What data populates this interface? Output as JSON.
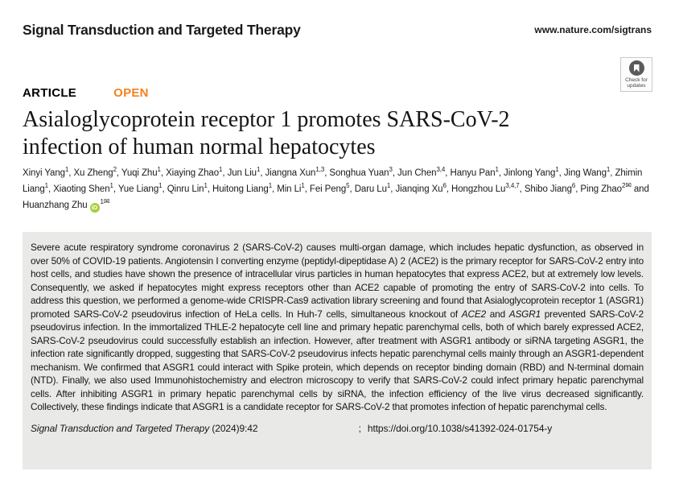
{
  "header": {
    "journal": "Signal Transduction and Targeted Therapy",
    "site_url": "www.nature.com/sigtrans"
  },
  "badge": {
    "label_line1": "Check for",
    "label_line2": "updates"
  },
  "article": {
    "type_label": "ARTICLE",
    "open_label": "OPEN",
    "title_line1": "Asialoglycoprotein receptor 1 promotes SARS-CoV-2",
    "title_line2": "infection of human normal hepatocytes"
  },
  "authors": {
    "conjunction": "and",
    "email_icon": "✉",
    "orcid_label": "iD",
    "list": [
      {
        "name": "Xinyi Yang",
        "sup": "1"
      },
      {
        "name": "Xu Zheng",
        "sup": "2"
      },
      {
        "name": "Yuqi Zhu",
        "sup": "1"
      },
      {
        "name": "Xiaying Zhao",
        "sup": "1"
      },
      {
        "name": "Jun Liu",
        "sup": "1"
      },
      {
        "name": "Jiangna Xun",
        "sup": "1,3"
      },
      {
        "name": "Songhua Yuan",
        "sup": "3"
      },
      {
        "name": "Jun Chen",
        "sup": "3,4"
      },
      {
        "name": "Hanyu Pan",
        "sup": "1"
      },
      {
        "name": "Jinlong Yang",
        "sup": "1"
      },
      {
        "name": "Jing Wang",
        "sup": "1"
      },
      {
        "name": "Zhimin Liang",
        "sup": "1"
      },
      {
        "name": "Xiaoting Shen",
        "sup": "1"
      },
      {
        "name": "Yue Liang",
        "sup": "1"
      },
      {
        "name": "Qinru Lin",
        "sup": "1"
      },
      {
        "name": "Huitong Liang",
        "sup": "1"
      },
      {
        "name": "Min Li",
        "sup": "1"
      },
      {
        "name": "Fei Peng",
        "sup": "5"
      },
      {
        "name": "Daru Lu",
        "sup": "1"
      },
      {
        "name": "Jianqing Xu",
        "sup": "6"
      },
      {
        "name": "Hongzhou Lu",
        "sup": "3,4,7"
      },
      {
        "name": "Shibo Jiang",
        "sup": "6"
      },
      {
        "name": "Ping Zhao",
        "sup": "2",
        "email": true
      },
      {
        "name": "Huanzhang Zhu",
        "sup": "1",
        "orcid": true,
        "email": true
      }
    ]
  },
  "abstract": {
    "segments": [
      {
        "text": "Severe acute respiratory syndrome coronavirus 2 (SARS-CoV-2) causes multi-organ damage, which includes hepatic dysfunction, as observed in over 50% of COVID-19 patients. Angiotensin I converting enzyme (peptidyl-dipeptidase A) 2 (ACE2) is the primary receptor for SARS-CoV-2 entry into host cells, and studies have shown the presence of intracellular virus particles in human hepatocytes that express ACE2, but at extremely low levels. Consequently, we asked if hepatocytes might express receptors other than ACE2 capable of promoting the entry of SARS-CoV-2 into cells. To address this question, we performed a genome-wide CRISPR-Cas9 activation library screening and found that Asialoglycoprotein receptor 1 (ASGR1) promoted SARS-CoV-2 pseudovirus infection of HeLa cells. In Huh-7 cells, simultaneous knockout of "
      },
      {
        "text": "ACE2",
        "italic": true
      },
      {
        "text": " and "
      },
      {
        "text": "ASGR1",
        "italic": true
      },
      {
        "text": " prevented SARS-CoV-2 pseudovirus infection. In the immortalized THLE-2 hepatocyte cell line and primary hepatic parenchymal cells, both of which barely expressed ACE2, SARS-CoV-2 pseudovirus could successfully establish an infection. However, after treatment with ASGR1 antibody or siRNA targeting ASGR1, the infection rate significantly dropped, suggesting that SARS-CoV-2 pseudovirus infects hepatic parenchymal cells mainly through an ASGR1-dependent mechanism. We confirmed that ASGR1 could interact with Spike protein, which depends on receptor binding domain (RBD) and N-terminal domain (NTD). Finally, we also used Immunohistochemistry and electron microscopy to verify that SARS-CoV-2 could infect primary hepatic parenchymal cells. After inhibiting ASGR1 in primary hepatic parenchymal cells by siRNA, the infection efficiency of the live virus decreased significantly. Collectively, these findings indicate that ASGR1 is a candidate receptor for SARS-CoV-2 that promotes infection of hepatic parenchymal cells."
      }
    ]
  },
  "citation": {
    "journal": "Signal Transduction and Targeted Therapy",
    "issue": "(2024)9:42",
    "separator": ";",
    "doi": "https://doi.org/10.1038/s41392-024-01754-y"
  },
  "colors": {
    "open_orange": "#f5821f",
    "orcid_green": "#a6ce39",
    "abstract_bg": "#e9e9e7"
  }
}
